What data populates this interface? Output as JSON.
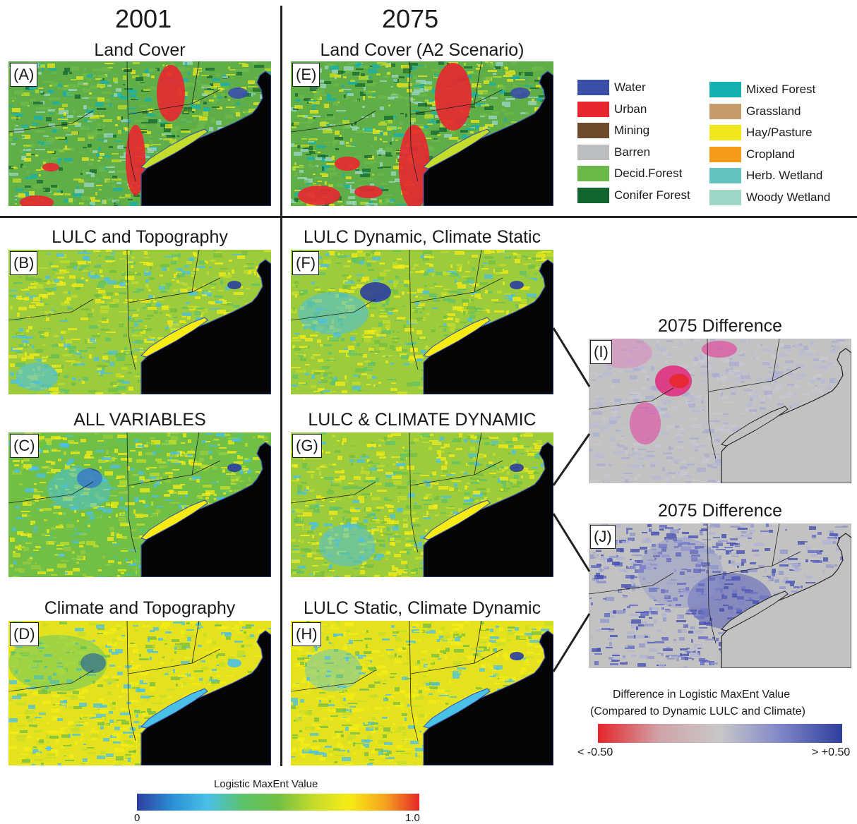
{
  "years": {
    "left": "2001",
    "right": "2075"
  },
  "panels": {
    "A": {
      "label": "(A)",
      "title": "Land Cover"
    },
    "E": {
      "label": "(E)",
      "title": "Land Cover (A2 Scenario)"
    },
    "B": {
      "label": "(B)",
      "title": "LULC and Topography"
    },
    "F": {
      "label": "(F)",
      "title": "LULC Dynamic, Climate Static"
    },
    "C": {
      "label": "(C)",
      "title": "ALL VARIABLES"
    },
    "G": {
      "label": "(G)",
      "title": "LULC & CLIMATE DYNAMIC"
    },
    "D": {
      "label": "(D)",
      "title": "Climate and Topography"
    },
    "H": {
      "label": "(H)",
      "title": "LULC Static, Climate Dynamic"
    },
    "I": {
      "label": "(I)",
      "title": "2075 Difference"
    },
    "J": {
      "label": "(J)",
      "title": "2075 Difference"
    }
  },
  "land_cover_legend": [
    {
      "label": "Water",
      "color": "#3a4fa8"
    },
    {
      "label": "Urban",
      "color": "#e8262f"
    },
    {
      "label": "Mining",
      "color": "#6e4a2c"
    },
    {
      "label": "Barren",
      "color": "#bcbec0"
    },
    {
      "label": "Decid.Forest",
      "color": "#6cb94a"
    },
    {
      "label": "Conifer Forest",
      "color": "#13652f"
    },
    {
      "label": "Mixed Forest",
      "color": "#14b0b0"
    },
    {
      "label": "Grassland",
      "color": "#c69a6b"
    },
    {
      "label": "Hay/Pasture",
      "color": "#f0e81c"
    },
    {
      "label": "Cropland",
      "color": "#f59a1b"
    },
    {
      "label": "Herb. Wetland",
      "color": "#62c2be"
    },
    {
      "label": "Woody Wetland",
      "color": "#9ed7c8"
    }
  ],
  "maxent_scale": {
    "title": "Logistic MaxEnt Value",
    "min_label": "0",
    "max_label": "1.0",
    "colors": [
      "#2c3e9e",
      "#2b8fd6",
      "#49c0e8",
      "#5cc36a",
      "#71bf44",
      "#c4dc2a",
      "#f6ec14",
      "#f6a61d",
      "#e5282a"
    ]
  },
  "difference_scale": {
    "title_line1": "Difference in Logistic MaxEnt Value",
    "title_line2": "(Compared to Dynamic LULC and Climate)",
    "min_label": "< -0.50",
    "max_label": "> +0.50",
    "colors": [
      "#e5262b",
      "#d0a3a8",
      "#c8c8c8",
      "#7f86c8",
      "#2e3e9c"
    ]
  }
}
